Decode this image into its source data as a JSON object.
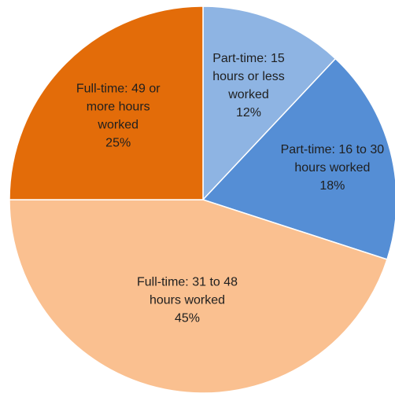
{
  "chart_data": {
    "type": "pie",
    "title": "",
    "categories": [
      "Part-time: 15 hours or less worked",
      "Part-time: 16 to 30 hours worked",
      "Full-time: 31 to 48 hours worked",
      "Full-time: 49 or more hours worked"
    ],
    "values": [
      12,
      18,
      45,
      25
    ],
    "unit": "%",
    "data_labels": [
      [
        "Part-time: 15",
        "hours or less",
        "worked",
        "12%"
      ],
      [
        "Part-time: 16 to 30",
        "hours worked",
        "18%"
      ],
      [
        "Full-time: 31 to 48",
        "hours worked",
        "45%"
      ],
      [
        "Full-time: 49 or",
        "more hours",
        "worked",
        "25%"
      ]
    ],
    "colors": [
      "#8eb4e3",
      "#558ed5",
      "#fac090",
      "#e36c09"
    ],
    "start_angle_deg": 0,
    "direction": "clockwise",
    "legend": "none"
  }
}
